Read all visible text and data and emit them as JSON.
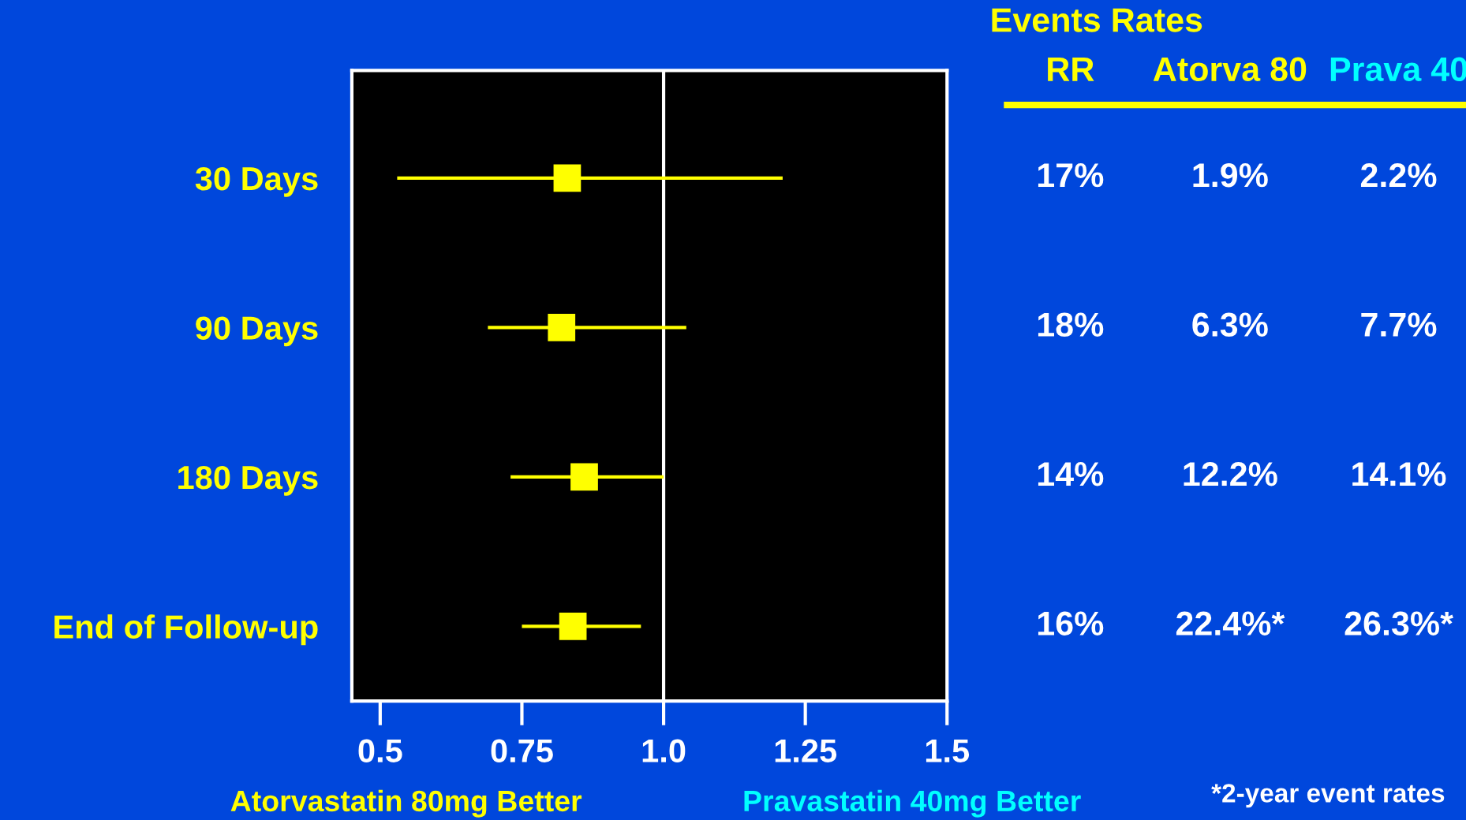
{
  "chart_data": {
    "type": "scatter",
    "orientation": "horizontal",
    "marker": "square",
    "categories": [
      "30 Days",
      "90 Days",
      "180 Days",
      "End of Follow-up"
    ],
    "values": [
      0.83,
      0.82,
      0.86,
      0.84
    ],
    "errors": [
      [
        0.53,
        1.21
      ],
      [
        0.69,
        1.04
      ],
      [
        0.73,
        1.0
      ],
      [
        0.75,
        0.96
      ]
    ],
    "color": "#ffff00",
    "xlim": [
      0.45,
      1.5
    ],
    "xticks": [
      {
        "value": 0.5,
        "label": "0.5"
      },
      {
        "value": 0.75,
        "label": "0.75"
      },
      {
        "value": 1.0,
        "label": "1.0"
      },
      {
        "value": 1.25,
        "label": "1.25"
      },
      {
        "value": 1.5,
        "label": "1.5"
      }
    ],
    "ref_lines": [
      {
        "axis": "x",
        "value": 1.0,
        "color": "#ffffff"
      }
    ],
    "grid": false,
    "legend": false,
    "annotations": [
      "Events Rates",
      "RR",
      "Atorva 80",
      "Prava 40",
      "17%",
      "1.9%",
      "2.2%",
      "18%",
      "6.3%",
      "7.7%",
      "14%",
      "12.2%",
      "14.1%",
      "16%",
      "22.4%*",
      "26.3%*",
      "*2-year event rates",
      "Atorvastatin 80mg Better",
      "Pravastatin 40mg Better"
    ]
  }
}
